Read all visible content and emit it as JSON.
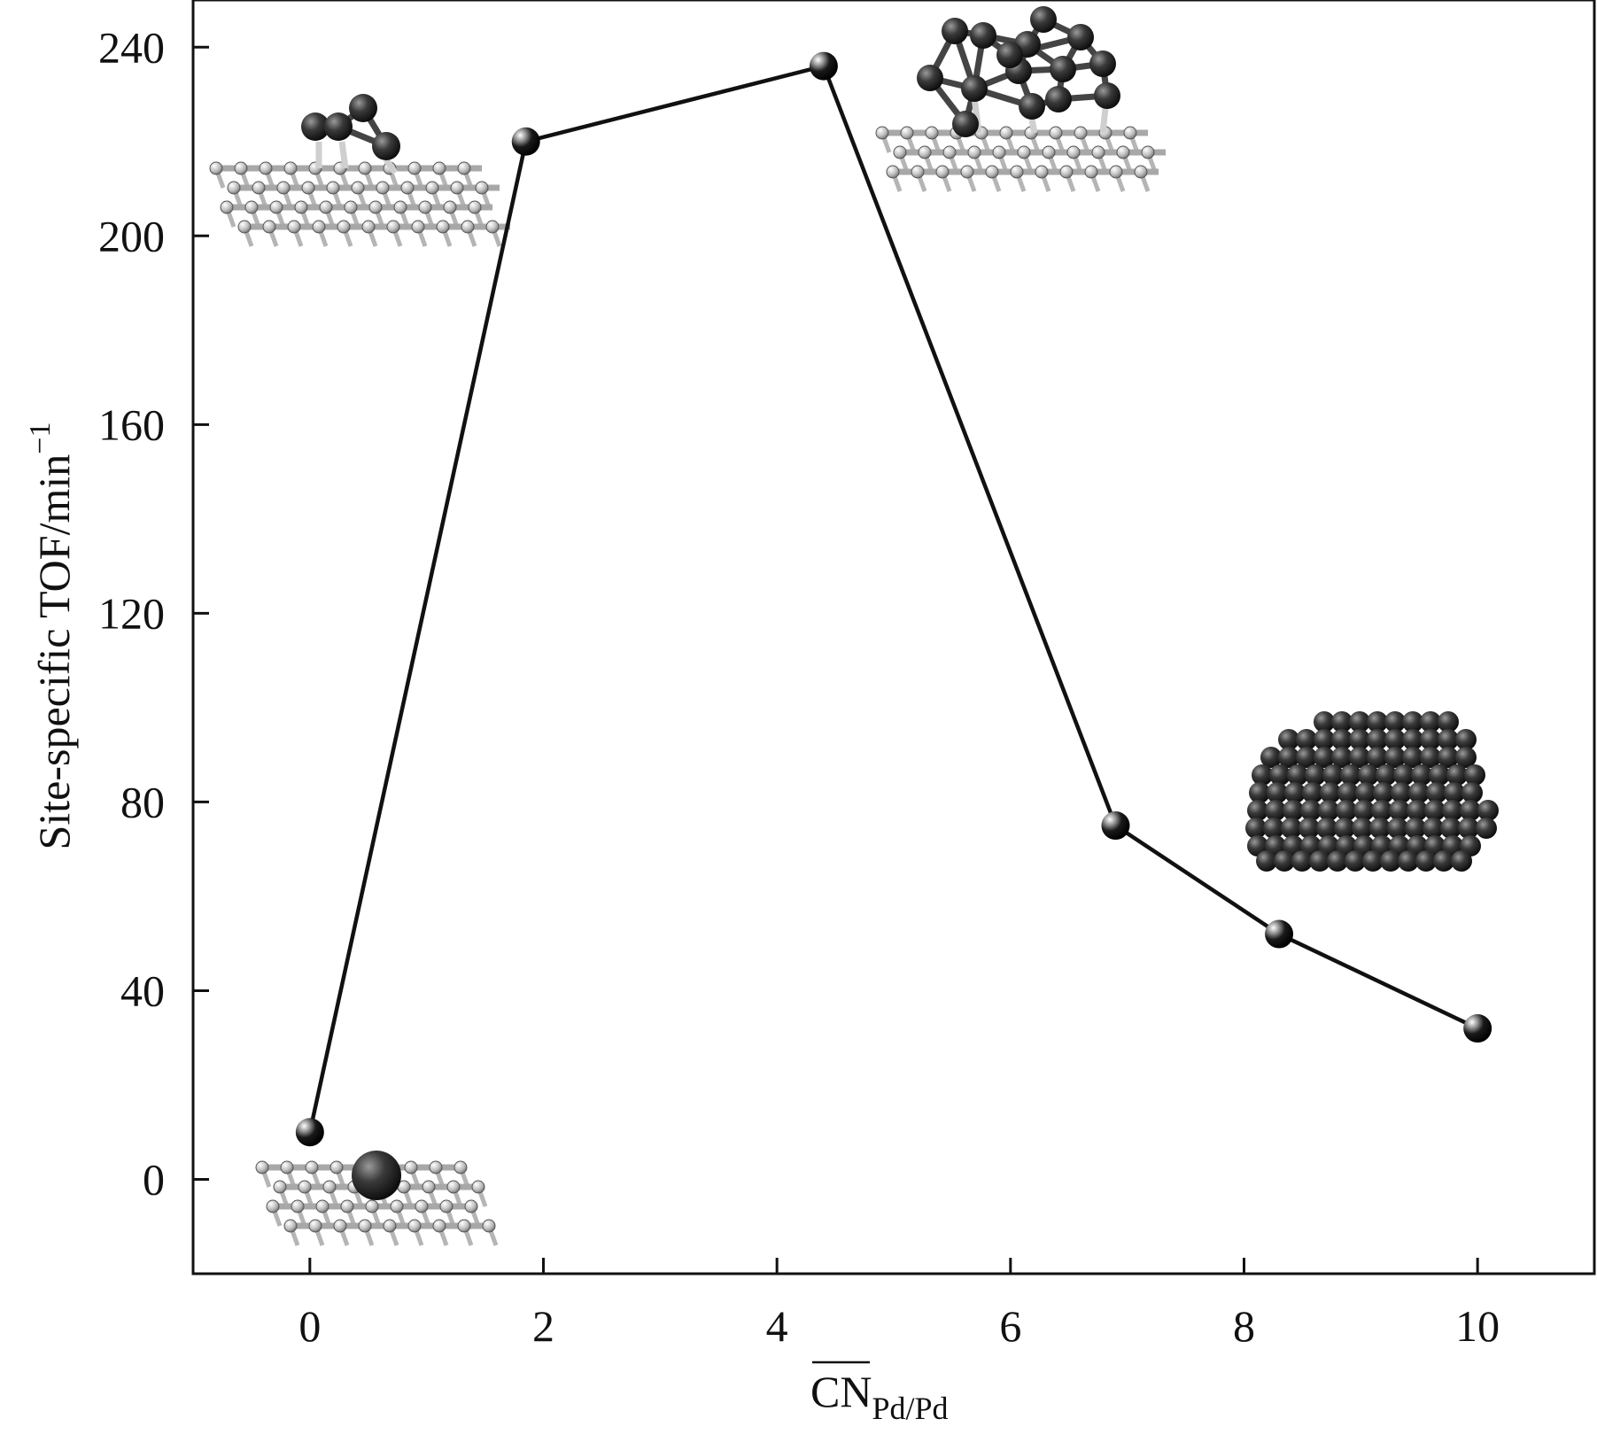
{
  "chart_data": {
    "type": "line",
    "title": "",
    "xlabel": "CN",
    "xlabel_subscript": "Pd/Pd",
    "ylabel": "Site-specific TOF/min",
    "ylabel_superscript": "−1",
    "xlim": [
      -1,
      11
    ],
    "ylim": [
      -20,
      250
    ],
    "x_ticks": [
      "0",
      "2",
      "4",
      "6",
      "8",
      "10"
    ],
    "y_ticks": [
      "0",
      "40",
      "80",
      "120",
      "160",
      "200",
      "240"
    ],
    "grid": false,
    "legend": "none",
    "series": [
      {
        "x": [
          0,
          1.85,
          4.4,
          6.9,
          8.3,
          10
        ],
        "y": [
          10,
          220,
          236,
          75,
          52,
          32
        ],
        "color": "#111111"
      }
    ],
    "insets": [
      "Pd single atom on graphene",
      "Pd small cluster on graphene",
      "Pd cluster on graphene",
      "Pd nanoparticle"
    ]
  }
}
